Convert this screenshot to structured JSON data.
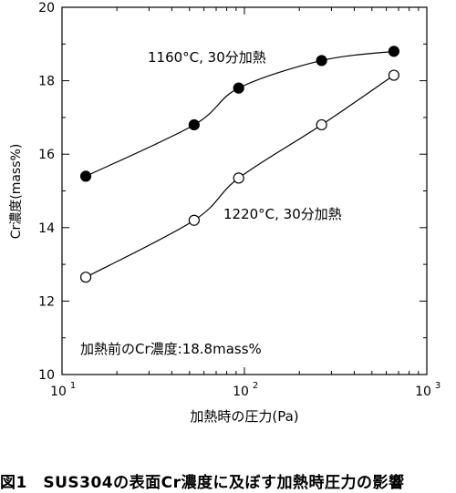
{
  "chart_data": {
    "type": "scatter",
    "xlabel": "加熱時の圧力(Pa)",
    "ylabel": "Cr濃度(mass%)",
    "xscale": "log",
    "xlim": [
      10,
      1000
    ],
    "ylim": [
      10,
      20
    ],
    "x_ticks": [
      {
        "value": 10,
        "base": "10",
        "exp": "1"
      },
      {
        "value": 100,
        "base": "10",
        "exp": "2"
      },
      {
        "value": 1000,
        "base": "10",
        "exp": "3"
      }
    ],
    "y_ticks": [
      10,
      12,
      14,
      16,
      18,
      20
    ],
    "grid": false,
    "series": [
      {
        "name": "1160°C, 30分加熱",
        "marker": "filled-circle",
        "color": "#000000",
        "x": [
          13.5,
          53,
          93,
          265,
          660
        ],
        "y": [
          15.4,
          16.8,
          17.8,
          18.55,
          18.8
        ]
      },
      {
        "name": "1220°C, 30分加熱",
        "marker": "open-circle",
        "color": "#000000",
        "x": [
          13.5,
          53,
          93,
          265,
          660
        ],
        "y": [
          12.65,
          14.2,
          15.35,
          16.8,
          18.15
        ]
      }
    ],
    "annotations": {
      "note": "加熱前のCr濃度:18.8mass%"
    }
  },
  "caption": "図1　SUS304の表面Cr濃度に及ぼす加熱時圧力の影響"
}
